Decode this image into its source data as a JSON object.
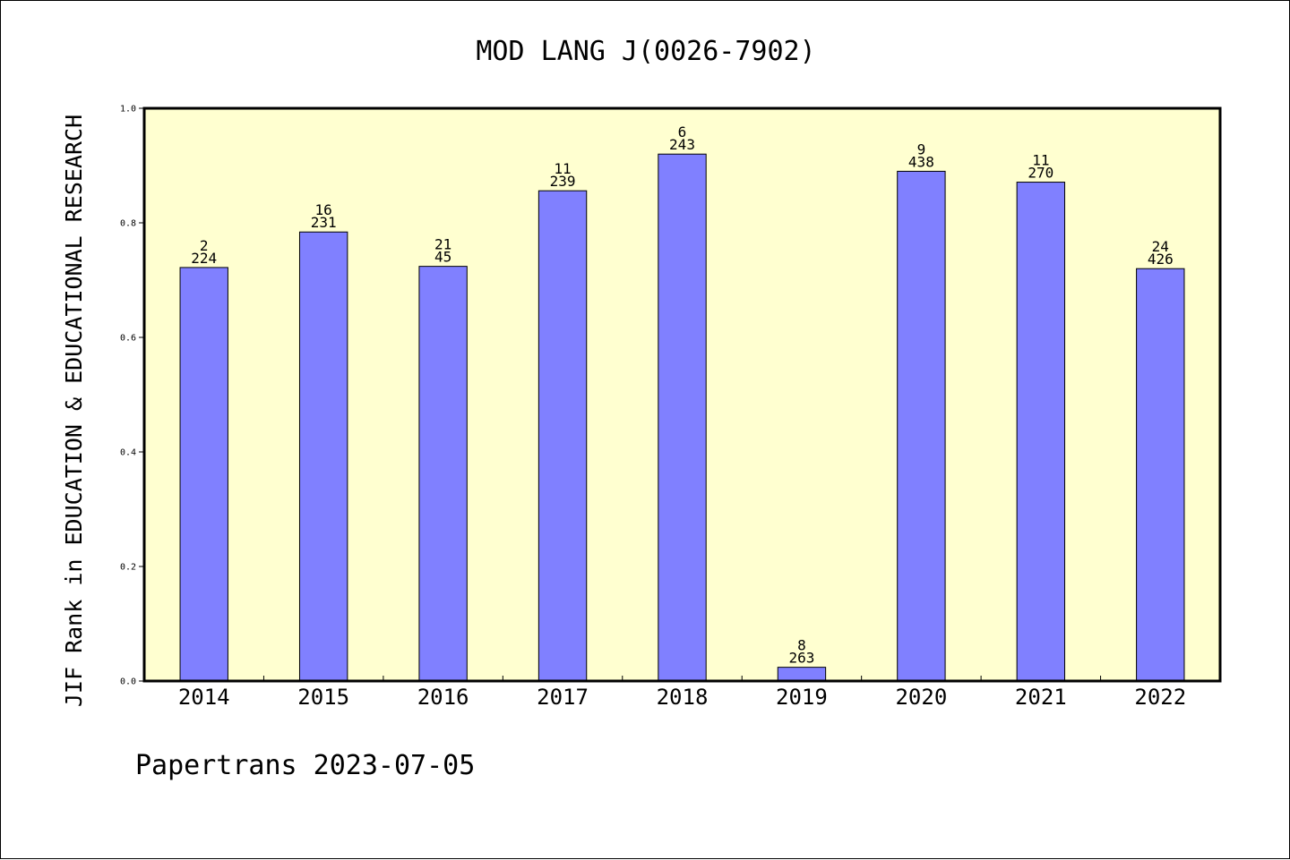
{
  "chart_data": {
    "type": "bar",
    "title": "MOD LANG J(0026-7902)",
    "xlabel": "",
    "ylabel": "JIF Rank in EDUCATION & EDUCATIONAL RESEARCH",
    "ylim": [
      0,
      1.0
    ],
    "yticks": [
      "0.0",
      "0.2",
      "0.4",
      "0.6",
      "0.8",
      "1.0"
    ],
    "categories": [
      "2014",
      "2015",
      "2016",
      "2017",
      "2018",
      "2019",
      "2020",
      "2021",
      "2022"
    ],
    "values": [
      0.722,
      0.784,
      0.724,
      0.856,
      0.92,
      0.024,
      0.89,
      0.871,
      0.72
    ],
    "rank_labels": [
      "2",
      "16",
      "21",
      "11",
      "6",
      "8",
      "9",
      "11",
      "24"
    ],
    "total_labels": [
      "224",
      "231",
      "45",
      "239",
      "243",
      "263",
      "438",
      "270",
      "426"
    ],
    "grid": false,
    "colors": {
      "plot_background": "#ffffd0",
      "bar_fill": "#8080ff",
      "bar_stroke": "#000000"
    }
  },
  "footer": "Papertrans 2023-07-05"
}
